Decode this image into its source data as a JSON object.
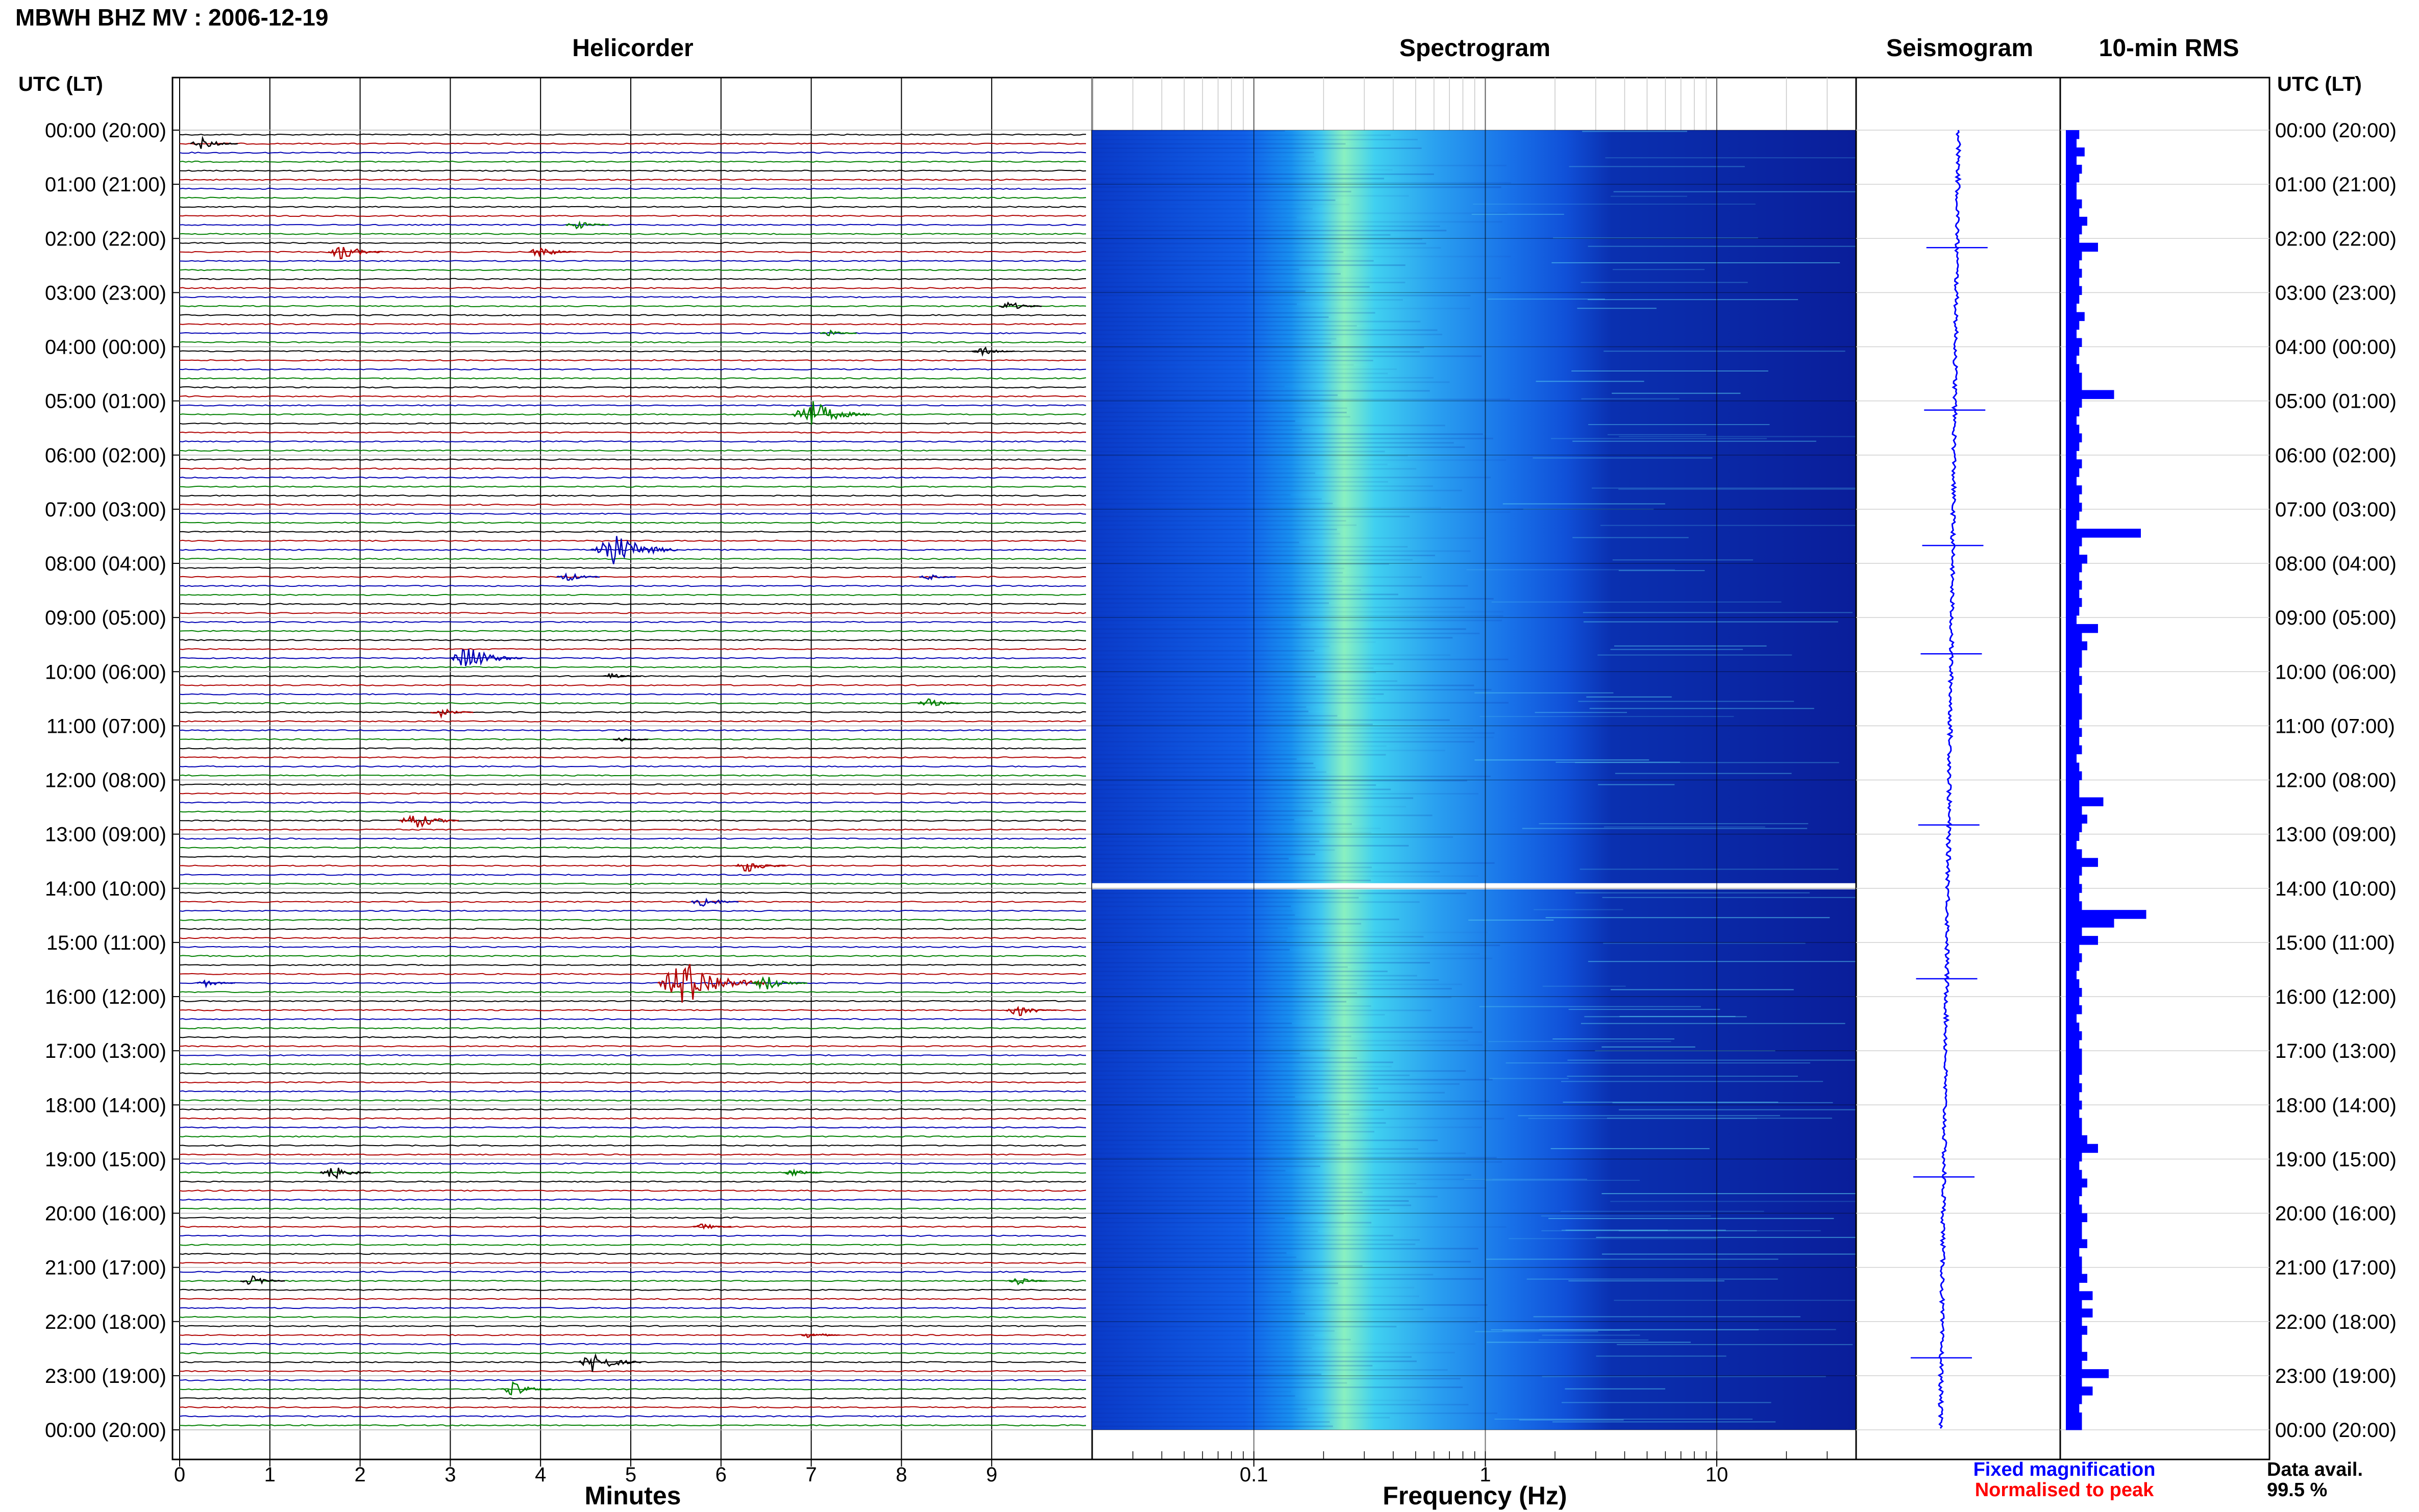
{
  "figure": {
    "title": "MBWH BHZ MV : 2006-12-19",
    "time_axis_label": "UTC (LT)",
    "panel_titles": {
      "helicorder": "Helicorder",
      "spectrogram": "Spectrogram",
      "seismogram": "Seismogram",
      "rms": "10-min RMS"
    },
    "legend": {
      "fixed_magnification": "Fixed magnification",
      "normalised": "Normalised to peak",
      "fixed_color": "#0000ff",
      "normalised_color": "#ff0000"
    },
    "data_avail_label": "Data avail.",
    "data_avail_value": "99.5 %",
    "colors": {
      "trace_black": "#000000",
      "trace_red": "#b00000",
      "trace_blue": "#0000b4",
      "trace_green": "#008000",
      "rms_bar": "#0000ff",
      "seismogram": "#0000ff"
    }
  },
  "chart_data": [
    {
      "type": "line",
      "name": "helicorder",
      "title": "Helicorder",
      "xlabel": "Minutes",
      "ylabel": "UTC (LT)",
      "x_ticks": [
        0,
        1,
        2,
        3,
        4,
        5,
        6,
        7,
        8,
        9
      ],
      "xlim": [
        0,
        10
      ],
      "trace_colors_cycle": [
        "black",
        "red",
        "blue",
        "green"
      ],
      "time_ticks": [
        "00:00 (20:00)",
        "01:00 (21:00)",
        "02:00 (22:00)",
        "03:00 (23:00)",
        "04:00 (00:00)",
        "05:00 (01:00)",
        "06:00 (02:00)",
        "07:00 (03:00)",
        "08:00 (04:00)",
        "09:00 (05:00)",
        "10:00 (06:00)",
        "11:00 (07:00)",
        "12:00 (08:00)",
        "13:00 (09:00)",
        "14:00 (10:00)",
        "15:00 (11:00)",
        "16:00 (12:00)",
        "17:00 (13:00)",
        "18:00 (14:00)",
        "19:00 (15:00)",
        "20:00 (16:00)",
        "21:00 (17:00)",
        "22:00 (18:00)",
        "23:00 (19:00)",
        "00:00 (20:00)"
      ],
      "events": [
        {
          "hour": 0.33,
          "minute": 0.25,
          "amp": 1.0,
          "color": "black"
        },
        {
          "hour": 1.83,
          "minute": 4.4,
          "amp": 0.8,
          "color": "green"
        },
        {
          "hour": 2.17,
          "minute": 1.8,
          "amp": 1.4,
          "color": "red"
        },
        {
          "hour": 2.17,
          "minute": 4.0,
          "amp": 1.0,
          "color": "red"
        },
        {
          "hour": 3.33,
          "minute": 9.2,
          "amp": 0.8,
          "color": "black"
        },
        {
          "hour": 3.83,
          "minute": 7.2,
          "amp": 0.5,
          "color": "green"
        },
        {
          "hour": 4.0,
          "minute": 8.9,
          "amp": 0.8,
          "color": "black"
        },
        {
          "hour": 5.17,
          "minute": 7.0,
          "amp": 2.5,
          "color": "green"
        },
        {
          "hour": 7.67,
          "minute": 4.8,
          "amp": 3.0,
          "color": "blue"
        },
        {
          "hour": 8.17,
          "minute": 4.3,
          "amp": 0.8,
          "color": "blue"
        },
        {
          "hour": 8.17,
          "minute": 8.3,
          "amp": 0.5,
          "color": "blue"
        },
        {
          "hour": 9.67,
          "minute": 3.2,
          "amp": 2.2,
          "color": "blue"
        },
        {
          "hour": 10.0,
          "minute": 4.8,
          "amp": 0.6,
          "color": "black"
        },
        {
          "hour": 10.5,
          "minute": 8.3,
          "amp": 0.8,
          "color": "green"
        },
        {
          "hour": 10.83,
          "minute": 2.9,
          "amp": 0.8,
          "color": "red"
        },
        {
          "hour": 11.33,
          "minute": 4.9,
          "amp": 0.4,
          "color": "black"
        },
        {
          "hour": 12.83,
          "minute": 2.6,
          "amp": 1.6,
          "color": "red"
        },
        {
          "hour": 13.5,
          "minute": 6.3,
          "amp": 1.2,
          "color": "red"
        },
        {
          "hour": 14.33,
          "minute": 5.8,
          "amp": 1.0,
          "color": "blue"
        },
        {
          "hour": 15.67,
          "minute": 0.3,
          "amp": 0.6,
          "color": "blue"
        },
        {
          "hour": 15.67,
          "minute": 5.6,
          "amp": 4.0,
          "color": "red"
        },
        {
          "hour": 15.83,
          "minute": 6.5,
          "amp": 1.4,
          "color": "green"
        },
        {
          "hour": 16.17,
          "minute": 9.3,
          "amp": 1.2,
          "color": "red"
        },
        {
          "hour": 19.33,
          "minute": 1.7,
          "amp": 1.2,
          "color": "black"
        },
        {
          "hour": 19.17,
          "minute": 6.8,
          "amp": 0.6,
          "color": "green"
        },
        {
          "hour": 20.17,
          "minute": 5.8,
          "amp": 0.6,
          "color": "red"
        },
        {
          "hour": 21.33,
          "minute": 0.8,
          "amp": 0.9,
          "color": "black"
        },
        {
          "hour": 21.17,
          "minute": 9.3,
          "amp": 0.6,
          "color": "green"
        },
        {
          "hour": 22.17,
          "minute": 7.0,
          "amp": 0.6,
          "color": "red"
        },
        {
          "hour": 22.67,
          "minute": 4.6,
          "amp": 1.8,
          "color": "black"
        },
        {
          "hour": 23.17,
          "minute": 3.7,
          "amp": 1.2,
          "color": "green"
        }
      ]
    },
    {
      "type": "heatmap",
      "name": "spectrogram",
      "title": "Spectrogram",
      "xlabel": "Frequency (Hz)",
      "x_scale": "log",
      "xlim": [
        0.02,
        40
      ],
      "x_ticks": [
        0.1,
        1,
        10
      ],
      "x_tick_labels": [
        "0.1",
        "1",
        "10"
      ],
      "colormap": "jet",
      "dominant_band_hz": [
        0.15,
        0.4
      ],
      "peak_frequency_hz": 0.25,
      "data_gap_hour": 14.0
    },
    {
      "type": "line",
      "name": "seismogram",
      "title": "Seismogram",
      "spikes_at_hour": [
        2.17,
        5.17,
        7.67,
        9.67,
        12.83,
        15.67,
        19.33,
        22.67
      ]
    },
    {
      "type": "bar",
      "name": "rms",
      "title": "10-min RMS",
      "interval_minutes": 10,
      "values": [
        0.25,
        0.2,
        0.35,
        0.2,
        0.3,
        0.25,
        0.2,
        0.2,
        0.3,
        0.25,
        0.4,
        0.3,
        0.25,
        0.6,
        0.3,
        0.25,
        0.3,
        0.25,
        0.3,
        0.25,
        0.2,
        0.35,
        0.25,
        0.2,
        0.3,
        0.25,
        0.2,
        0.25,
        0.3,
        0.3,
        0.9,
        0.3,
        0.25,
        0.2,
        0.25,
        0.3,
        0.25,
        0.2,
        0.3,
        0.25,
        0.2,
        0.3,
        0.25,
        0.3,
        0.25,
        0.2,
        1.4,
        0.3,
        0.25,
        0.4,
        0.3,
        0.25,
        0.3,
        0.25,
        0.3,
        0.25,
        0.2,
        0.6,
        0.3,
        0.4,
        0.3,
        0.3,
        0.25,
        0.3,
        0.25,
        0.3,
        0.3,
        0.3,
        0.25,
        0.3,
        0.25,
        0.3,
        0.2,
        0.25,
        0.3,
        0.25,
        0.25,
        0.7,
        0.3,
        0.4,
        0.3,
        0.25,
        0.2,
        0.3,
        0.6,
        0.3,
        0.25,
        0.3,
        0.25,
        0.3,
        1.5,
        0.9,
        0.3,
        0.6,
        0.25,
        0.3,
        0.25,
        0.2,
        0.25,
        0.3,
        0.25,
        0.3,
        0.2,
        0.25,
        0.3,
        0.25,
        0.3,
        0.3,
        0.3,
        0.25,
        0.3,
        0.25,
        0.3,
        0.25,
        0.3,
        0.3,
        0.4,
        0.6,
        0.3,
        0.25,
        0.3,
        0.4,
        0.3,
        0.25,
        0.3,
        0.4,
        0.3,
        0.3,
        0.4,
        0.25,
        0.3,
        0.3,
        0.4,
        0.25,
        0.5,
        0.3,
        0.5,
        0.3,
        0.4,
        0.3,
        0.3,
        0.4,
        0.3,
        0.8,
        0.3,
        0.5,
        0.3,
        0.25,
        0.3,
        0.3
      ]
    }
  ]
}
